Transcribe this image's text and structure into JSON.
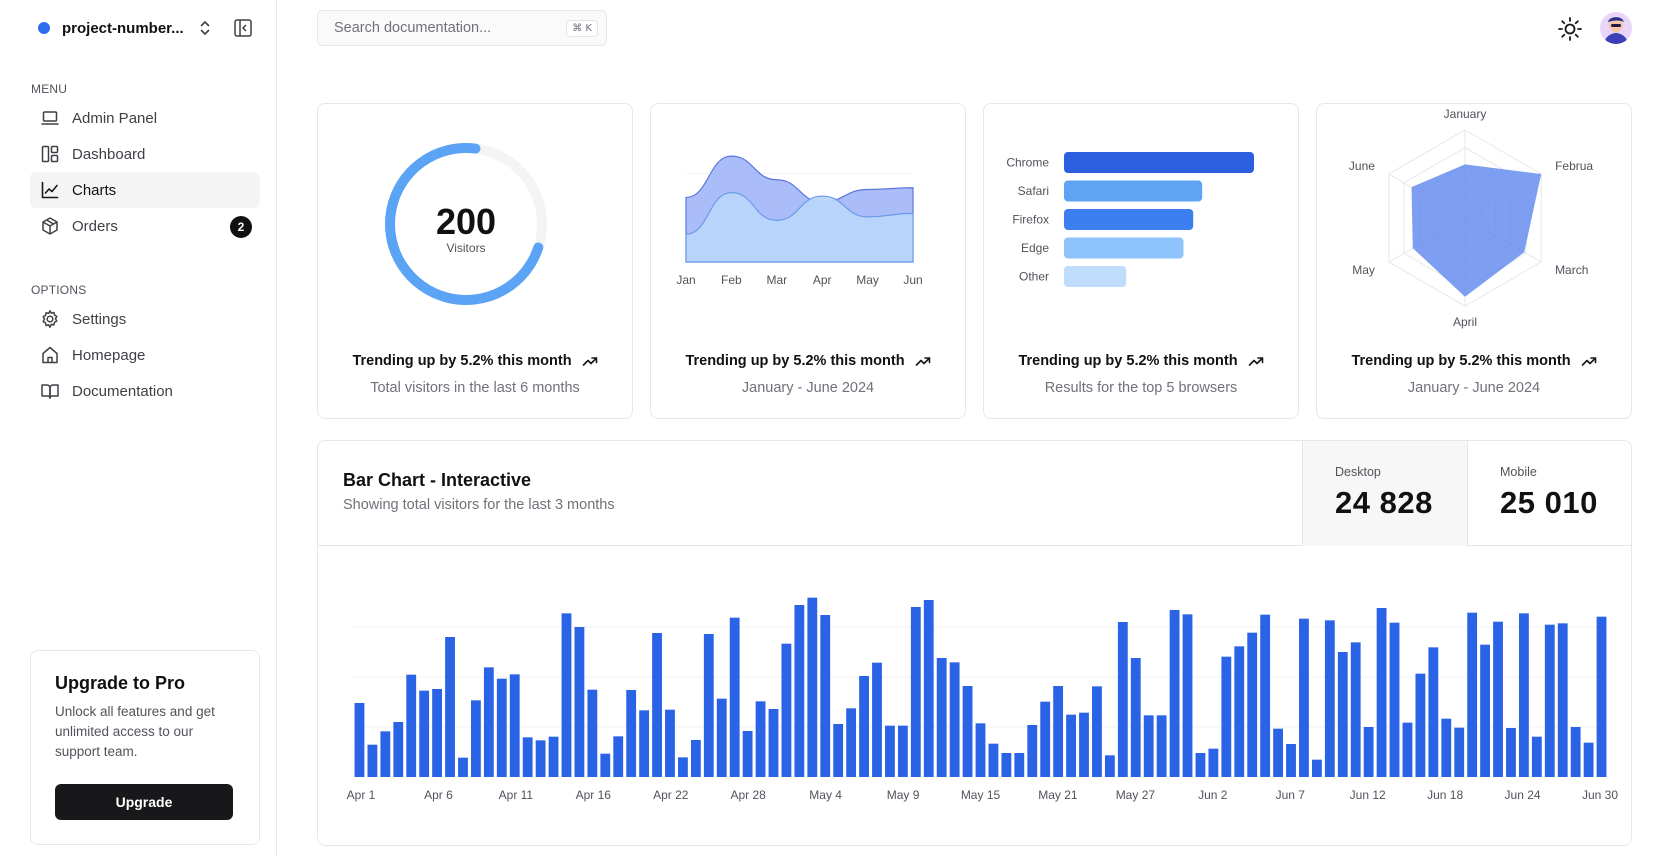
{
  "sidebar": {
    "project": "project-number...",
    "menu_label": "MENU",
    "menu": [
      {
        "label": "Admin Panel",
        "icon": "laptop-icon"
      },
      {
        "label": "Dashboard",
        "icon": "layout-icon"
      },
      {
        "label": "Charts",
        "icon": "line-chart-icon",
        "active": true
      },
      {
        "label": "Orders",
        "icon": "package-icon",
        "badge": "2"
      }
    ],
    "options_label": "OPTIONS",
    "options": [
      {
        "label": "Settings",
        "icon": "gear-icon"
      },
      {
        "label": "Homepage",
        "icon": "home-icon"
      },
      {
        "label": "Documentation",
        "icon": "book-icon"
      }
    ],
    "upgrade": {
      "title": "Upgrade to Pro",
      "text": "Unlock all features and get unlimited access to our support team.",
      "button": "Upgrade"
    }
  },
  "header": {
    "search_placeholder": "Search documentation...",
    "search_shortcut": "⌘ K"
  },
  "colors": {
    "accent": "#2f6fed",
    "bar": "#2b63e6",
    "area_dark": "#8fa7f5",
    "area_light": "#b9d5fb",
    "radial": "#5aa3f5"
  },
  "cards": [
    {
      "trend": "Trending up by 5.2% this month",
      "subtitle": "Total visitors in the last 6 months"
    },
    {
      "trend": "Trending up by 5.2% this month",
      "subtitle": "January - June 2024"
    },
    {
      "trend": "Trending up by 5.2% this month",
      "subtitle": "Results for the top 5 browsers"
    },
    {
      "trend": "Trending up by 5.2% this month",
      "subtitle": "January - June 2024"
    }
  ],
  "big_chart": {
    "title": "Bar Chart - Interactive",
    "subtitle": "Showing total visitors for the last 3 months",
    "desktop_label": "Desktop",
    "desktop_value": "24 828",
    "mobile_label": "Mobile",
    "mobile_value": "25 010"
  },
  "chart_data": [
    {
      "type": "radial",
      "value": 200,
      "label": "Visitors",
      "fraction": 0.72
    },
    {
      "type": "area",
      "categories": [
        "Jan",
        "Feb",
        "Mar",
        "Apr",
        "May",
        "Jun"
      ],
      "series": [
        {
          "values": [
            186,
            305,
            237,
            173,
            209,
            214
          ]
        },
        {
          "values": [
            80,
            200,
            120,
            190,
            130,
            140
          ]
        }
      ],
      "ylim": [
        0,
        340
      ]
    },
    {
      "type": "bar",
      "orientation": "horizontal",
      "categories": [
        "Chrome",
        "Safari",
        "Firefox",
        "Edge",
        "Other"
      ],
      "values": [
        275,
        200,
        187,
        173,
        90
      ],
      "colors": [
        "#2b5fe0",
        "#5fa3f3",
        "#3b7ff0",
        "#8ec3fb",
        "#bfdcfc"
      ],
      "xlim": [
        0,
        275
      ]
    },
    {
      "type": "radar",
      "categories": [
        "January",
        "February",
        "March",
        "April",
        "May",
        "June"
      ],
      "values": [
        186,
        305,
        237,
        273,
        209,
        214
      ],
      "rlim": [
        0,
        305
      ]
    },
    {
      "type": "bar",
      "tick_labels": [
        "Apr 1",
        "Apr 6",
        "Apr 11",
        "Apr 16",
        "Apr 22",
        "Apr 28",
        "May 4",
        "May 9",
        "May 15",
        "May 21",
        "May 27",
        "Jun 2",
        "Jun 7",
        "Jun 12",
        "Jun 18",
        "Jun 24",
        "Jun 30"
      ],
      "values": [
        222,
        97,
        137,
        165,
        307,
        259,
        264,
        420,
        58,
        230,
        329,
        295,
        308,
        119,
        110,
        121,
        491,
        450,
        262,
        70,
        122,
        261,
        200,
        432,
        202,
        59,
        111,
        429,
        235,
        478,
        138,
        227,
        204,
        400,
        516,
        538,
        486,
        159,
        206,
        303,
        343,
        154,
        154,
        510,
        531,
        357,
        344,
        273,
        161,
        100,
        72,
        72,
        156,
        226,
        273,
        187,
        193,
        272,
        65,
        465,
        357,
        185,
        185,
        501,
        488,
        72,
        85,
        361,
        392,
        433,
        487,
        145,
        99,
        475,
        52,
        470,
        375,
        404,
        150,
        507,
        463,
        163,
        310,
        389,
        175,
        148,
        493,
        397,
        466,
        147,
        491,
        121,
        457,
        461,
        150,
        103,
        481
      ],
      "ylim": [
        0,
        600
      ]
    }
  ]
}
